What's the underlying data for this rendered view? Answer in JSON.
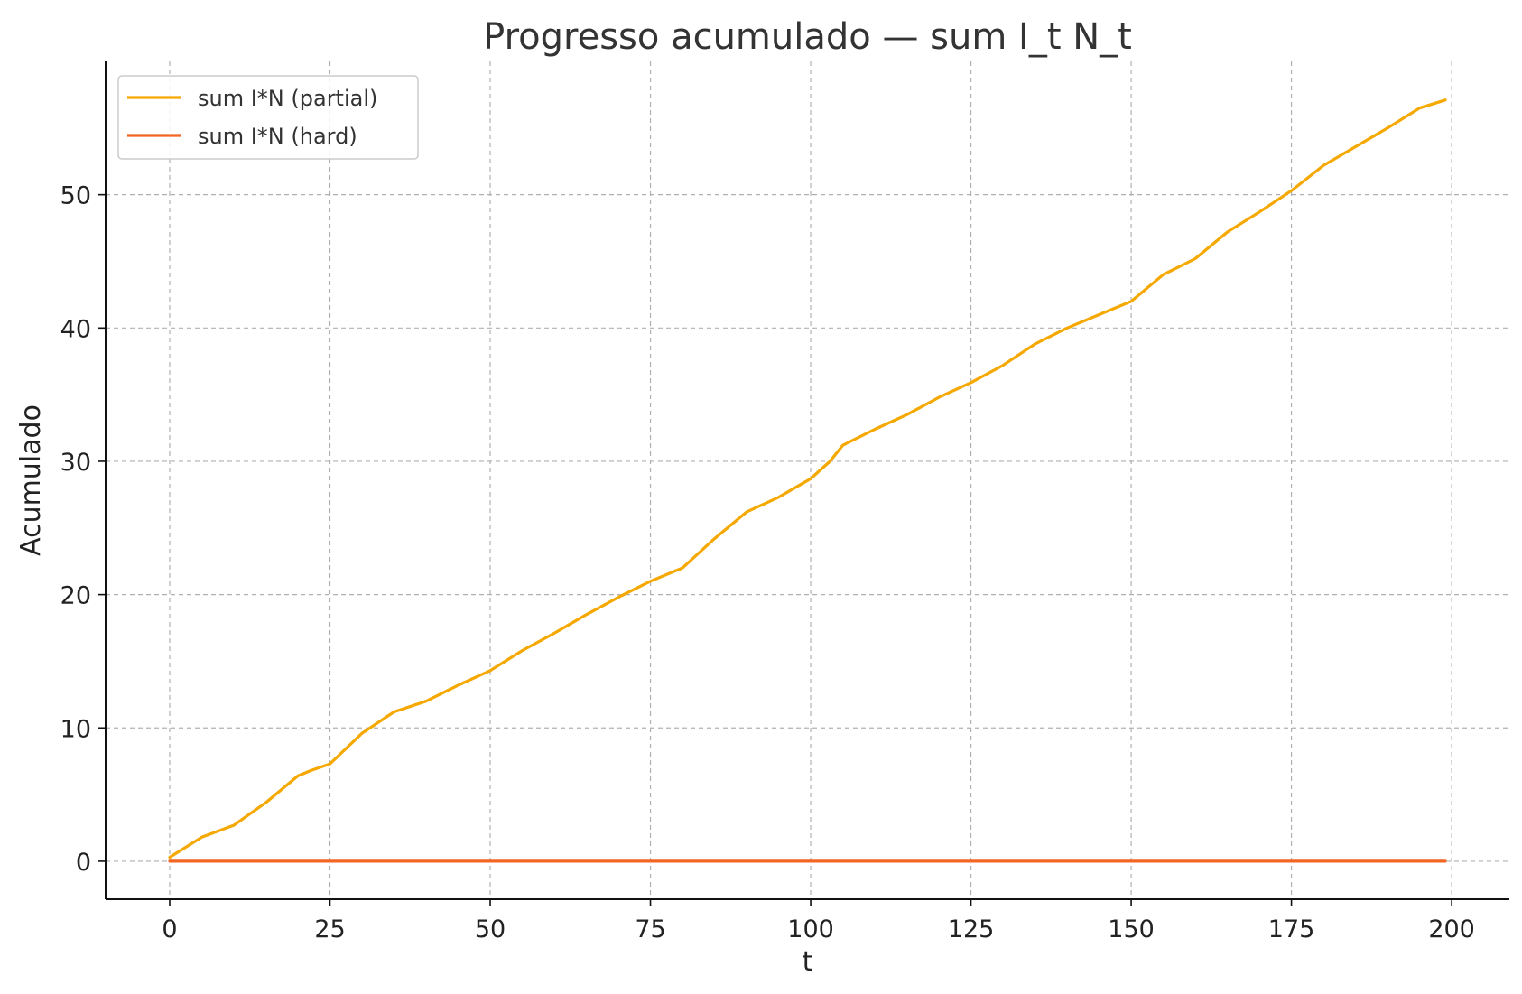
{
  "chart_data": {
    "type": "line",
    "title": "Progresso acumulado — sum I_t N_t",
    "xlabel": "t",
    "ylabel": "Acumulado",
    "xlim": [
      -10,
      209
    ],
    "ylim": [
      -2.85,
      60
    ],
    "xticks": [
      0,
      25,
      50,
      75,
      100,
      125,
      150,
      175,
      200
    ],
    "yticks": [
      0,
      10,
      20,
      30,
      40,
      50
    ],
    "grid": true,
    "legend_position": "top-left",
    "series": [
      {
        "name": "sum I*N (partial)",
        "color": "#f5a800",
        "x": [
          0,
          5,
          10,
          15,
          20,
          22,
          25,
          30,
          35,
          40,
          45,
          50,
          55,
          60,
          65,
          70,
          75,
          80,
          85,
          90,
          95,
          100,
          103,
          105,
          110,
          115,
          120,
          125,
          130,
          135,
          140,
          145,
          150,
          155,
          160,
          165,
          170,
          175,
          180,
          185,
          190,
          195,
          199
        ],
        "y": [
          0.3,
          1.8,
          2.7,
          4.4,
          6.4,
          6.8,
          7.3,
          9.6,
          11.2,
          12.0,
          13.2,
          14.3,
          15.8,
          17.1,
          18.5,
          19.8,
          21.0,
          22.0,
          24.2,
          26.2,
          27.3,
          28.7,
          30.0,
          31.2,
          32.4,
          33.5,
          34.8,
          35.9,
          37.2,
          38.8,
          40.0,
          41.0,
          42.0,
          44.0,
          45.2,
          47.2,
          48.7,
          50.3,
          52.2,
          53.6,
          55.0,
          56.5,
          57.1
        ]
      },
      {
        "name": "sum I*N (hard)",
        "color": "#f26522",
        "x": [
          0,
          199
        ],
        "y": [
          0,
          0
        ]
      }
    ]
  }
}
